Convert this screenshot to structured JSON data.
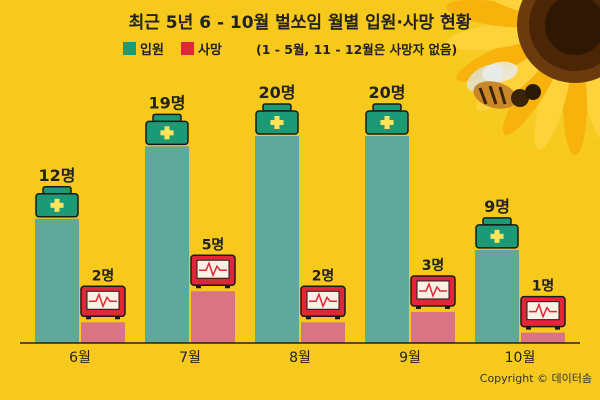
{
  "title": "최근 5년 6 - 10월 벌쏘임 월별 입원·사망 현황",
  "note": "(1 - 5월, 11 - 12월은 사망자 없음)",
  "copyright": "Copyright © 데이터솜",
  "chart_data": {
    "type": "bar",
    "categories": [
      "6월",
      "7월",
      "8월",
      "9월",
      "10월"
    ],
    "series": [
      {
        "name": "입원",
        "values": [
          12,
          19,
          20,
          20,
          9
        ],
        "labels": [
          "12명",
          "19명",
          "20명",
          "20명",
          "9명"
        ],
        "color": "#5FA89A"
      },
      {
        "name": "사망",
        "values": [
          2,
          5,
          2,
          3,
          1
        ],
        "labels": [
          "2명",
          "5명",
          "2명",
          "3명",
          "1명"
        ],
        "color": "#D87484"
      }
    ],
    "ylim": [
      0,
      24
    ],
    "legend_position": "top-left",
    "colors": {
      "background": "#F6C91C",
      "icon_green": "#1C9A76",
      "icon_red": "#E0273A",
      "axis": "#222222"
    }
  }
}
